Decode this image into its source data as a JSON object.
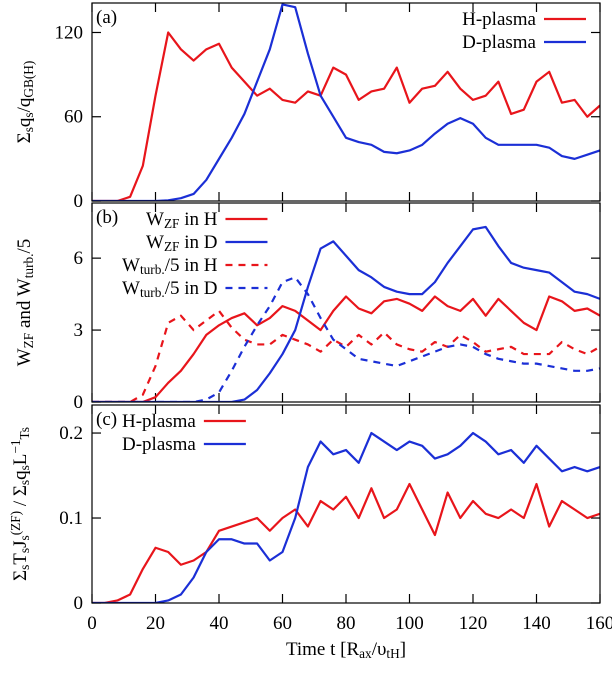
{
  "chart_data": [
    {
      "type": "line",
      "panel_label": "(a)",
      "ylabel": [
        "Σ",
        {
          "sub": "s"
        },
        "q",
        {
          "sub": "s"
        },
        "/q",
        {
          "sub": "GB(H)"
        }
      ],
      "xlim": [
        0,
        160
      ],
      "xticks": [
        0,
        20,
        40,
        60,
        80,
        100,
        120,
        140,
        160
      ],
      "ylim": [
        0,
        141
      ],
      "yticks": [
        0,
        60,
        120
      ],
      "legend": "upper right",
      "x": [
        0,
        4,
        8,
        12,
        16,
        20,
        24,
        28,
        32,
        36,
        40,
        44,
        48,
        52,
        56,
        60,
        64,
        68,
        72,
        76,
        80,
        84,
        88,
        92,
        96,
        100,
        104,
        108,
        112,
        116,
        120,
        124,
        128,
        132,
        136,
        140,
        144,
        148,
        152,
        156,
        160
      ],
      "series": [
        {
          "name": [
            "H-plasma"
          ],
          "color": "#e8151b",
          "linestyle": "solid",
          "values": [
            0,
            0,
            0,
            3,
            25,
            75,
            120,
            108,
            100,
            108,
            112,
            95,
            85,
            75,
            80,
            72,
            70,
            78,
            75,
            95,
            90,
            72,
            78,
            80,
            95,
            70,
            80,
            82,
            92,
            80,
            72,
            75,
            85,
            62,
            65,
            85,
            92,
            70,
            72,
            60,
            68
          ]
        },
        {
          "name": [
            "D-plasma"
          ],
          "color": "#1b2fd6",
          "linestyle": "solid",
          "values": [
            0,
            0,
            0,
            0,
            0,
            0,
            0.5,
            2,
            5,
            15,
            30,
            45,
            62,
            85,
            108,
            140,
            138,
            105,
            75,
            60,
            45,
            42,
            40,
            35,
            34,
            36,
            40,
            48,
            55,
            59,
            55,
            45,
            40,
            40,
            40,
            40,
            38,
            32,
            30,
            33,
            36
          ]
        }
      ]
    },
    {
      "type": "line",
      "panel_label": "(b)",
      "ylabel": [
        "W",
        {
          "sub": "ZF"
        },
        " and W",
        {
          "sub": "turb."
        },
        "/5"
      ],
      "xlim": [
        0,
        160
      ],
      "xticks": [
        0,
        20,
        40,
        60,
        80,
        100,
        120,
        140,
        160
      ],
      "ylim": [
        0,
        8.3
      ],
      "yticks": [
        0,
        3,
        6
      ],
      "legend": "upper left",
      "x": [
        0,
        4,
        8,
        12,
        16,
        20,
        24,
        28,
        32,
        36,
        40,
        44,
        48,
        52,
        56,
        60,
        64,
        68,
        72,
        76,
        80,
        84,
        88,
        92,
        96,
        100,
        104,
        108,
        112,
        116,
        120,
        124,
        128,
        132,
        136,
        140,
        144,
        148,
        152,
        156,
        160
      ],
      "series": [
        {
          "name": [
            "W",
            {
              "sub": "ZF"
            },
            " in H"
          ],
          "color": "#e8151b",
          "linestyle": "solid",
          "values": [
            0,
            0,
            0,
            0,
            0,
            0.2,
            0.8,
            1.3,
            2,
            2.8,
            3.2,
            3.5,
            3.7,
            3.2,
            3.5,
            4,
            3.8,
            3.4,
            3.0,
            3.8,
            4.4,
            3.9,
            3.7,
            4.2,
            4.3,
            4.1,
            3.8,
            4.4,
            4.0,
            3.8,
            4.3,
            3.6,
            4.3,
            3.8,
            3.3,
            3.0,
            4.4,
            4.2,
            3.8,
            3.9,
            3.6
          ]
        },
        {
          "name": [
            "W",
            {
              "sub": "ZF"
            },
            " in D"
          ],
          "color": "#1b2fd6",
          "linestyle": "solid",
          "values": [
            0,
            0,
            0,
            0,
            0,
            0,
            0,
            0,
            0,
            0,
            0,
            0,
            0.1,
            0.5,
            1.2,
            2.0,
            3.0,
            4.8,
            6.4,
            6.7,
            6.1,
            5.5,
            5.2,
            4.8,
            4.6,
            4.5,
            4.5,
            5.0,
            5.8,
            6.5,
            7.2,
            7.3,
            6.5,
            5.8,
            5.6,
            5.5,
            5.4,
            5.0,
            4.6,
            4.5,
            4.3
          ]
        },
        {
          "name": [
            "W",
            {
              "sub": "turb."
            },
            "/5 in H"
          ],
          "color": "#e8151b",
          "linestyle": "dashed",
          "values": [
            0,
            0,
            0,
            0,
            0.3,
            1.5,
            3.3,
            3.6,
            3.0,
            3.4,
            3.8,
            3.1,
            2.6,
            2.4,
            2.4,
            2.8,
            2.6,
            2.4,
            2.1,
            2.6,
            2.3,
            2.8,
            2.4,
            2.9,
            2.4,
            2.2,
            2.1,
            2.5,
            2.3,
            2.8,
            2.5,
            2.1,
            2.2,
            2.3,
            2.0,
            2.0,
            2.0,
            2.5,
            2.2,
            2.0,
            2.3
          ]
        },
        {
          "name": [
            "W",
            {
              "sub": "turb."
            },
            "/5 in D"
          ],
          "color": "#1b2fd6",
          "linestyle": "dashed",
          "values": [
            0,
            0,
            0,
            0,
            0,
            0,
            0,
            0,
            0,
            0.1,
            0.4,
            1.3,
            2.3,
            3.2,
            4.0,
            5.0,
            5.2,
            4.5,
            3.5,
            2.6,
            2.2,
            1.8,
            1.7,
            1.6,
            1.5,
            1.7,
            1.9,
            2.1,
            2.3,
            2.4,
            2.3,
            2.0,
            1.8,
            1.7,
            1.6,
            1.6,
            1.5,
            1.4,
            1.3,
            1.3,
            1.4
          ]
        }
      ]
    },
    {
      "type": "line",
      "panel_label": "(c)",
      "ylabel": [
        "Σ",
        {
          "sub": "s"
        },
        "T",
        {
          "sub": "s"
        },
        "J",
        {
          "sub": "s"
        },
        {
          "sup": "(ZF)"
        },
        " / Σ",
        {
          "sub": "s"
        },
        "q",
        {
          "sub": "s"
        },
        "L",
        {
          "sup": "−1"
        },
        {
          "sub": "Ts"
        }
      ],
      "xlabel": [
        "Time t [R",
        {
          "sub": "ax"
        },
        "/υ",
        {
          "sub": "tH"
        },
        "]"
      ],
      "xlim": [
        0,
        160
      ],
      "xticks": [
        0,
        20,
        40,
        60,
        80,
        100,
        120,
        140,
        160
      ],
      "ylim": [
        0,
        0.233
      ],
      "yticks": [
        0,
        0.1,
        0.2
      ],
      "legend": "upper left",
      "x": [
        0,
        4,
        8,
        12,
        16,
        20,
        24,
        28,
        32,
        36,
        40,
        44,
        48,
        52,
        56,
        60,
        64,
        68,
        72,
        76,
        80,
        84,
        88,
        92,
        96,
        100,
        104,
        108,
        112,
        116,
        120,
        124,
        128,
        132,
        136,
        140,
        144,
        148,
        152,
        156,
        160
      ],
      "series": [
        {
          "name": [
            "H-plasma"
          ],
          "color": "#e8151b",
          "linestyle": "solid",
          "values": [
            0,
            0,
            0.003,
            0.01,
            0.04,
            0.065,
            0.06,
            0.045,
            0.05,
            0.06,
            0.085,
            0.09,
            0.095,
            0.1,
            0.085,
            0.1,
            0.11,
            0.09,
            0.12,
            0.11,
            0.125,
            0.1,
            0.135,
            0.1,
            0.11,
            0.14,
            0.11,
            0.08,
            0.13,
            0.1,
            0.12,
            0.105,
            0.1,
            0.11,
            0.1,
            0.14,
            0.09,
            0.12,
            0.11,
            0.1,
            0.105
          ]
        },
        {
          "name": [
            "D-plasma"
          ],
          "color": "#1b2fd6",
          "linestyle": "solid",
          "values": [
            0,
            0,
            0,
            0,
            0,
            0,
            0.003,
            0.01,
            0.03,
            0.06,
            0.075,
            0.075,
            0.07,
            0.07,
            0.05,
            0.06,
            0.1,
            0.16,
            0.19,
            0.175,
            0.18,
            0.165,
            0.2,
            0.19,
            0.18,
            0.19,
            0.185,
            0.17,
            0.175,
            0.185,
            0.2,
            0.19,
            0.175,
            0.18,
            0.165,
            0.185,
            0.17,
            0.155,
            0.16,
            0.155,
            0.16
          ]
        }
      ]
    }
  ]
}
